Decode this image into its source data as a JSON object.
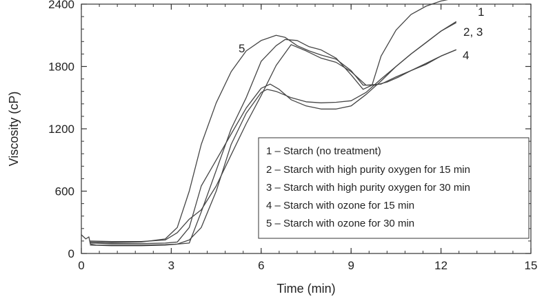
{
  "chart_data": {
    "type": "line",
    "title": "",
    "xlabel": "Time (min)",
    "ylabel": "Viscosity (cP)",
    "xlim": [
      0,
      15
    ],
    "ylim": [
      0,
      2400
    ],
    "xticks": [
      0,
      3,
      6,
      9,
      12,
      15
    ],
    "yticks": [
      0,
      600,
      1200,
      1800,
      2400
    ],
    "grid": false,
    "legend_position": "lower-right",
    "legend": [
      "1 – Starch (no treatment)",
      "2 – Starch with high purity oxygen for 15 min",
      "3 – Starch with high purity oxygen for 30 min",
      "4 – Starch with ozone for 15 min",
      "5 – Starch with ozone for 30 min"
    ],
    "curve_labels": [
      "1",
      "2, 3",
      "4",
      "5"
    ],
    "series": [
      {
        "x": [
          0,
          0.15,
          0.25,
          0.3,
          0.5,
          1,
          2,
          2.8,
          3.2,
          3.6,
          4,
          4.5,
          5,
          5.5,
          6,
          6.5,
          6.8,
          7.2,
          7.6,
          8,
          8.5,
          9,
          9.4,
          9.7,
          10,
          10.5,
          11,
          11.5,
          12,
          12.5
        ],
        "y": [
          180,
          140,
          160,
          90,
          80,
          80,
          80,
          85,
          90,
          100,
          400,
          800,
          1200,
          1500,
          1850,
          2000,
          2060,
          2050,
          1990,
          1960,
          1880,
          1720,
          1580,
          1620,
          1900,
          2150,
          2300,
          2380,
          2430,
          2460
        ]
      },
      {
        "x": [
          0.3,
          1,
          2,
          2.8,
          3.2,
          3.6,
          4,
          4.5,
          5,
          5.5,
          6,
          6.2,
          6.5,
          7,
          7.5,
          8,
          8.5,
          9,
          9.5,
          10,
          10.5,
          11,
          11.5,
          12,
          12.5
        ],
        "y": [
          80,
          75,
          75,
          80,
          90,
          130,
          250,
          600,
          1050,
          1350,
          1550,
          1580,
          1560,
          1500,
          1460,
          1450,
          1455,
          1470,
          1550,
          1680,
          1800,
          1920,
          2030,
          2140,
          2230
        ]
      },
      {
        "x": [
          0.3,
          1,
          2,
          2.8,
          3.2,
          3.6,
          4,
          4.5,
          5,
          5.5,
          6,
          6.3,
          6.6,
          7,
          7.5,
          8,
          8.5,
          9,
          9.5,
          10,
          10.5,
          11,
          11.5,
          12,
          12.5
        ],
        "y": [
          100,
          95,
          95,
          100,
          110,
          250,
          650,
          900,
          1150,
          1400,
          1590,
          1630,
          1580,
          1480,
          1420,
          1390,
          1390,
          1420,
          1530,
          1660,
          1800,
          1920,
          2030,
          2140,
          2220
        ]
      },
      {
        "x": [
          0.3,
          1,
          2,
          2.8,
          3.2,
          3.6,
          4,
          4.5,
          5,
          5.5,
          6,
          6.5,
          7,
          7.5,
          8,
          8.5,
          9,
          9.5,
          10,
          10.5,
          11,
          11.5,
          12,
          12.5
        ],
        "y": [
          120,
          115,
          115,
          130,
          200,
          330,
          420,
          650,
          950,
          1250,
          1520,
          1810,
          2010,
          1950,
          1880,
          1840,
          1750,
          1620,
          1630,
          1700,
          1760,
          1820,
          1900,
          1960
        ]
      },
      {
        "x": [
          0.3,
          1,
          2,
          2.8,
          3.2,
          3.6,
          4,
          4.5,
          5,
          5.5,
          6,
          6.5,
          6.8,
          7.2,
          7.6,
          8,
          8.5,
          9,
          9.4,
          9.8,
          10.2,
          10.6,
          11,
          11.5,
          12,
          12.5
        ],
        "y": [
          110,
          105,
          110,
          140,
          250,
          600,
          1050,
          1450,
          1750,
          1950,
          2050,
          2100,
          2080,
          2000,
          1950,
          1910,
          1870,
          1760,
          1620,
          1620,
          1650,
          1700,
          1760,
          1830,
          1900,
          1960
        ]
      }
    ]
  }
}
